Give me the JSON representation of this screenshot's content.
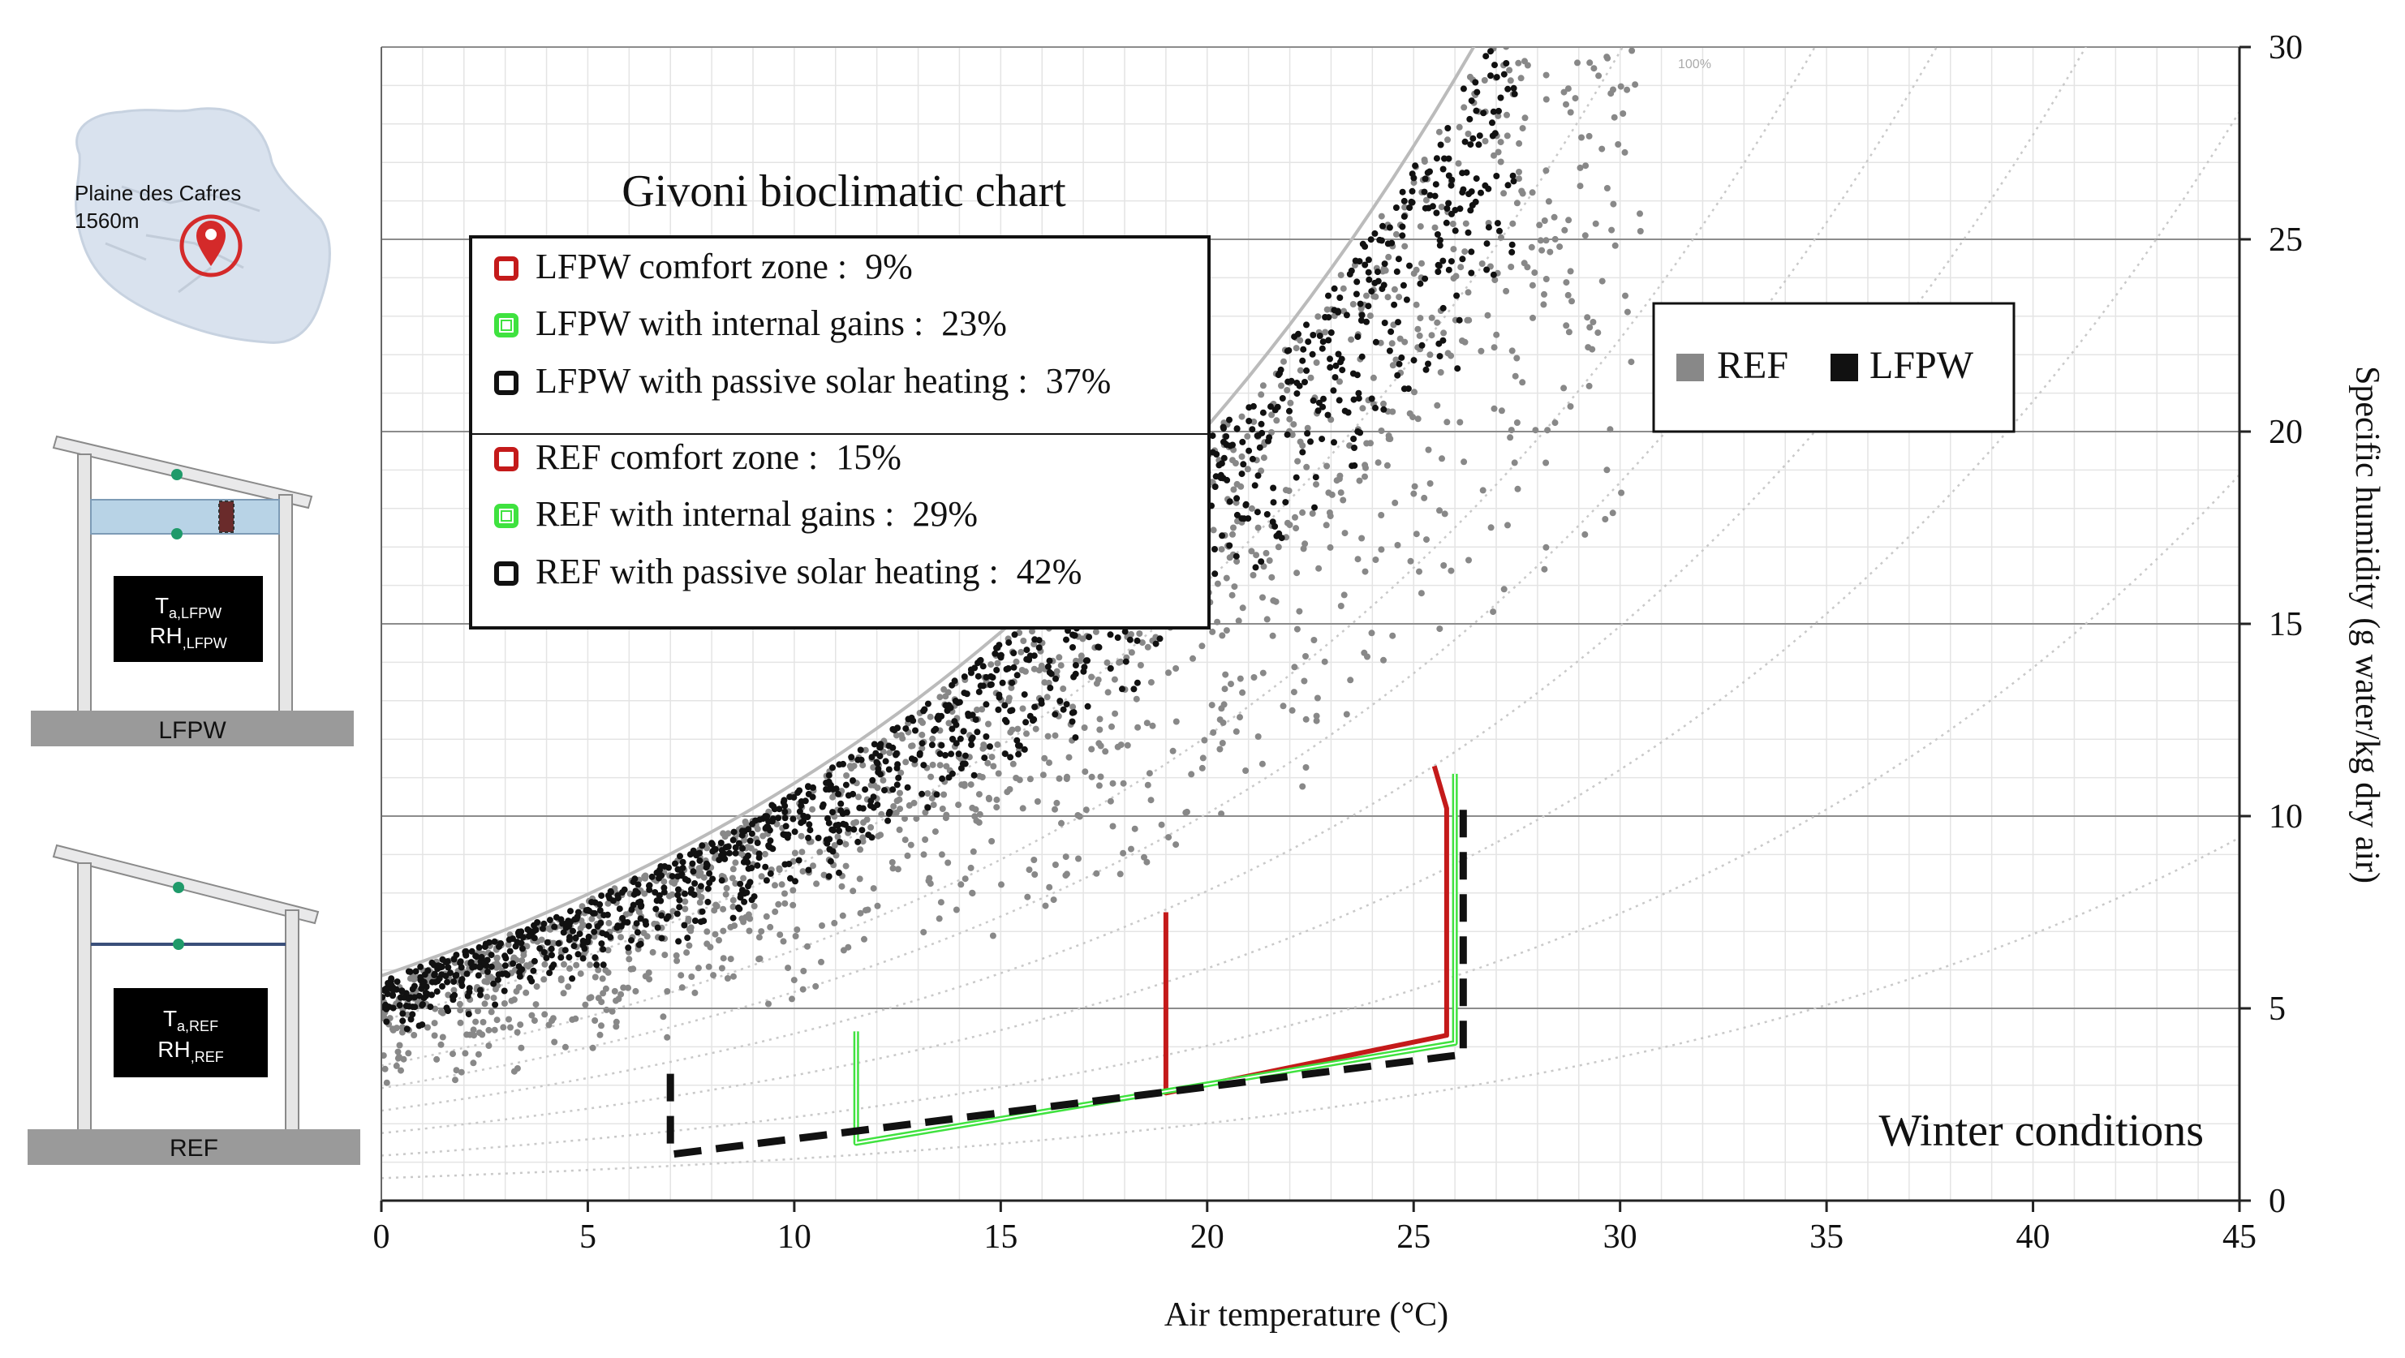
{
  "chart_data": {
    "type": "scatter",
    "title": "Givoni bioclimatic chart",
    "xlabel": "Air temperature (°C)",
    "ylabel": "Specific humidity (g water/kg dry air)",
    "xlim": [
      0,
      45
    ],
    "ylim": [
      0,
      30
    ],
    "xticks": [
      "0",
      "5",
      "10",
      "15",
      "20",
      "25",
      "30",
      "35",
      "40",
      "45"
    ],
    "yticks": [
      "0",
      "5",
      "10",
      "15",
      "20",
      "25",
      "30"
    ],
    "annotation": "Winter conditions",
    "legend_series": [
      {
        "name": "REF",
        "color": "#888888"
      },
      {
        "name": "LFPW",
        "color": "#111111"
      }
    ],
    "zones_legend": [
      {
        "label": "LFPW comfort zone :  9%",
        "color": "#c41a1a"
      },
      {
        "label": "LFPW with internal gains :  23%",
        "color": "#3fe23f"
      },
      {
        "label": "LFPW with passive solar heating :  37%",
        "color": "#111111"
      },
      {
        "label": "REF comfort zone :  15%",
        "color": "#c41a1a"
      },
      {
        "label": "REF with internal gains :  29%",
        "color": "#3fe23f"
      },
      {
        "label": "REF with passive solar heating :  42%",
        "color": "#111111"
      }
    ],
    "zones": [
      {
        "name": "comfort zone",
        "color": "#c41a1a",
        "points": [
          [
            19,
            7.5
          ],
          [
            19,
            2.8
          ],
          [
            25.8,
            4.3
          ],
          [
            25.8,
            10.2
          ],
          [
            25.5,
            11.3
          ]
        ]
      },
      {
        "name": "internal gains",
        "color": "#3fe23f",
        "points": [
          [
            11.5,
            4.4
          ],
          [
            11.5,
            1.5
          ],
          [
            26,
            4.1
          ],
          [
            26,
            11.1
          ]
        ]
      },
      {
        "name": "passive solar heating",
        "color": "#111111",
        "points": [
          [
            7,
            3.3
          ],
          [
            7,
            1.2
          ],
          [
            26.2,
            3.8
          ],
          [
            26.2,
            10.2
          ]
        ]
      }
    ],
    "saturation_curve_pct": "100%"
  },
  "site": {
    "name": "Plaine des Cafres",
    "altitude": "1560m"
  },
  "buildings": [
    {
      "label": "LFPW",
      "ta": "T",
      "ta_sub": "a,LFPW",
      "rh": "RH",
      "rh_sub": ",LFPW"
    },
    {
      "label": "REF",
      "ta": "T",
      "ta_sub": "a,REF",
      "rh": "RH",
      "rh_sub": ",REF"
    }
  ],
  "colors": {
    "ref_points": "#888888",
    "lfpw_points": "#111111",
    "comfort": "#c41a1a",
    "gains": "#3fe23f",
    "solar": "#111111",
    "map_fill": "#d9e2ee",
    "ceiling": "#b8d3e6",
    "accent_pin": "#d42a2a",
    "sensor": "#1f9a6a"
  }
}
